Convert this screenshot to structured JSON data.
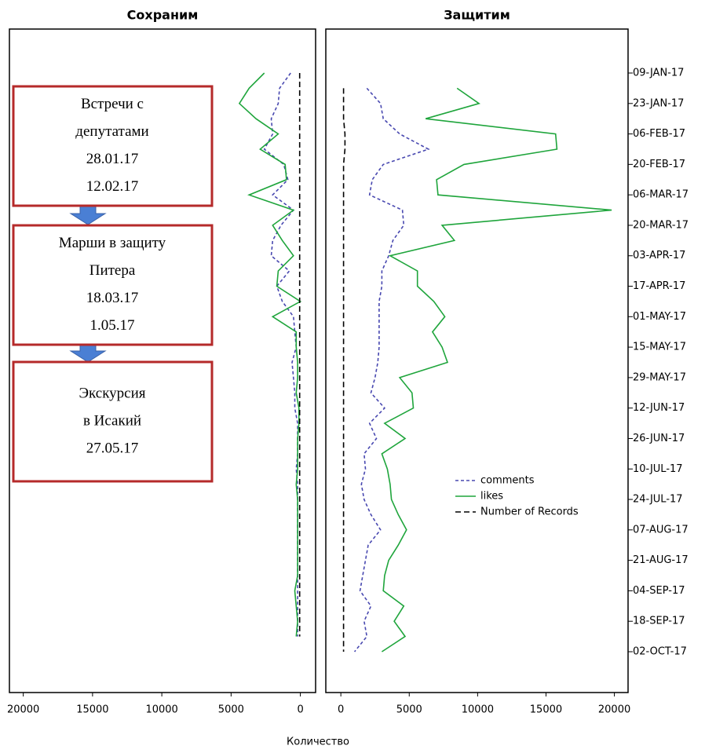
{
  "chart_data": {
    "type": "line",
    "x_label": "Количество",
    "categories": [
      "09-JAN-17",
      null,
      "23-JAN-17",
      null,
      "06-FEB-17",
      null,
      "20-FEB-17",
      null,
      "06-MAR-17",
      null,
      "20-MAR-17",
      null,
      "03-APR-17",
      null,
      "17-APR-17",
      null,
      "01-MAY-17",
      null,
      "15-MAY-17",
      null,
      "29-MAY-17",
      null,
      "12-JUN-17",
      null,
      "26-JUN-17",
      null,
      "10-JUL-17",
      null,
      "24-JUL-17",
      null,
      "07-AUG-17",
      null,
      "21-AUG-17",
      null,
      "04-SEP-17",
      null,
      "18-SEP-17",
      null,
      "02-OCT-17"
    ],
    "panels": [
      {
        "title": "Сохраним",
        "xlim": [
          21000,
          -1100
        ],
        "xticks": [
          20000,
          15000,
          10000,
          5000,
          0
        ],
        "series": [
          {
            "name": "comments",
            "color": "#4848b0",
            "dash": "4 3",
            "values": [
              700,
              1500,
              1600,
              2100,
              2000,
              2600,
              1200,
              900,
              2000,
              500,
              1400,
              2000,
              2100,
              800,
              1700,
              1300,
              500,
              400,
              300,
              600,
              500,
              400,
              400,
              200,
              200,
              200,
              300,
              200,
              200,
              200,
              200,
              200,
              200,
              200,
              200,
              200,
              200,
              200,
              null
            ]
          },
          {
            "name": "likes",
            "color": "#1fa53c",
            "dash": "none",
            "values": [
              2600,
              3700,
              4400,
              3200,
              1600,
              2900,
              1100,
              1000,
              3700,
              500,
              2000,
              1300,
              500,
              1600,
              1700,
              0,
              2000,
              300,
              300,
              200,
              200,
              300,
              100,
              100,
              200,
              200,
              200,
              300,
              200,
              200,
              200,
              200,
              200,
              200,
              400,
              300,
              200,
              300,
              null
            ]
          },
          {
            "name": "Number of Records",
            "color": "#000000",
            "dash": "7 4",
            "values": [
              50,
              50,
              50,
              50,
              50,
              50,
              50,
              50,
              50,
              50,
              50,
              50,
              50,
              50,
              50,
              50,
              50,
              50,
              50,
              50,
              50,
              50,
              50,
              50,
              50,
              50,
              50,
              50,
              50,
              50,
              50,
              50,
              50,
              50,
              50,
              50,
              50,
              50,
              null
            ]
          }
        ],
        "annotations": [
          {
            "lines": [
              "Встречи с",
              "депутатами",
              "28.01.17",
              "12.02.17"
            ]
          },
          {
            "lines": [
              "Марши в защиту",
              "Питера",
              "18.03.17",
              "1.05.17"
            ]
          },
          {
            "lines": [
              "Экскурсия",
              "в Исакий",
              "27.05.17"
            ]
          }
        ]
      },
      {
        "title": "Защитим",
        "xlim": [
          -1100,
          21000
        ],
        "xticks": [
          0,
          5000,
          10000,
          15000,
          20000
        ],
        "legend": "center-right",
        "series": [
          {
            "name": "comments",
            "color": "#4848b0",
            "dash": "4 3",
            "values": [
              null,
              1900,
              2900,
              3100,
              4300,
              6400,
              3100,
              2300,
              2100,
              4500,
              4600,
              3800,
              3500,
              3000,
              3000,
              2800,
              2800,
              2800,
              2800,
              2700,
              2500,
              2200,
              3200,
              2100,
              2600,
              1700,
              1800,
              1500,
              1700,
              2200,
              2900,
              2000,
              1800,
              1600,
              1400,
              2200,
              1700,
              1900,
              1000
            ]
          },
          {
            "name": "likes",
            "color": "#1fa53c",
            "dash": "none",
            "values": [
              null,
              8500,
              10100,
              6200,
              15700,
              15800,
              9000,
              7000,
              7100,
              19800,
              7400,
              8300,
              3600,
              5600,
              5600,
              6800,
              7600,
              6700,
              7400,
              7800,
              4300,
              5200,
              5300,
              3200,
              4700,
              3000,
              3400,
              3600,
              3700,
              4200,
              4800,
              4200,
              3500,
              3200,
              3100,
              4600,
              3900,
              4700,
              3000
            ]
          },
          {
            "name": "Number of Records",
            "color": "#000000",
            "dash": "7 4",
            "values": [
              null,
              200,
              200,
              200,
              300,
              300,
              200,
              200,
              200,
              200,
              200,
              200,
              200,
              200,
              200,
              200,
              200,
              200,
              200,
              200,
              200,
              200,
              200,
              200,
              200,
              200,
              200,
              200,
              200,
              200,
              200,
              200,
              200,
              200,
              200,
              200,
              200,
              200,
              200
            ]
          }
        ]
      }
    ]
  }
}
